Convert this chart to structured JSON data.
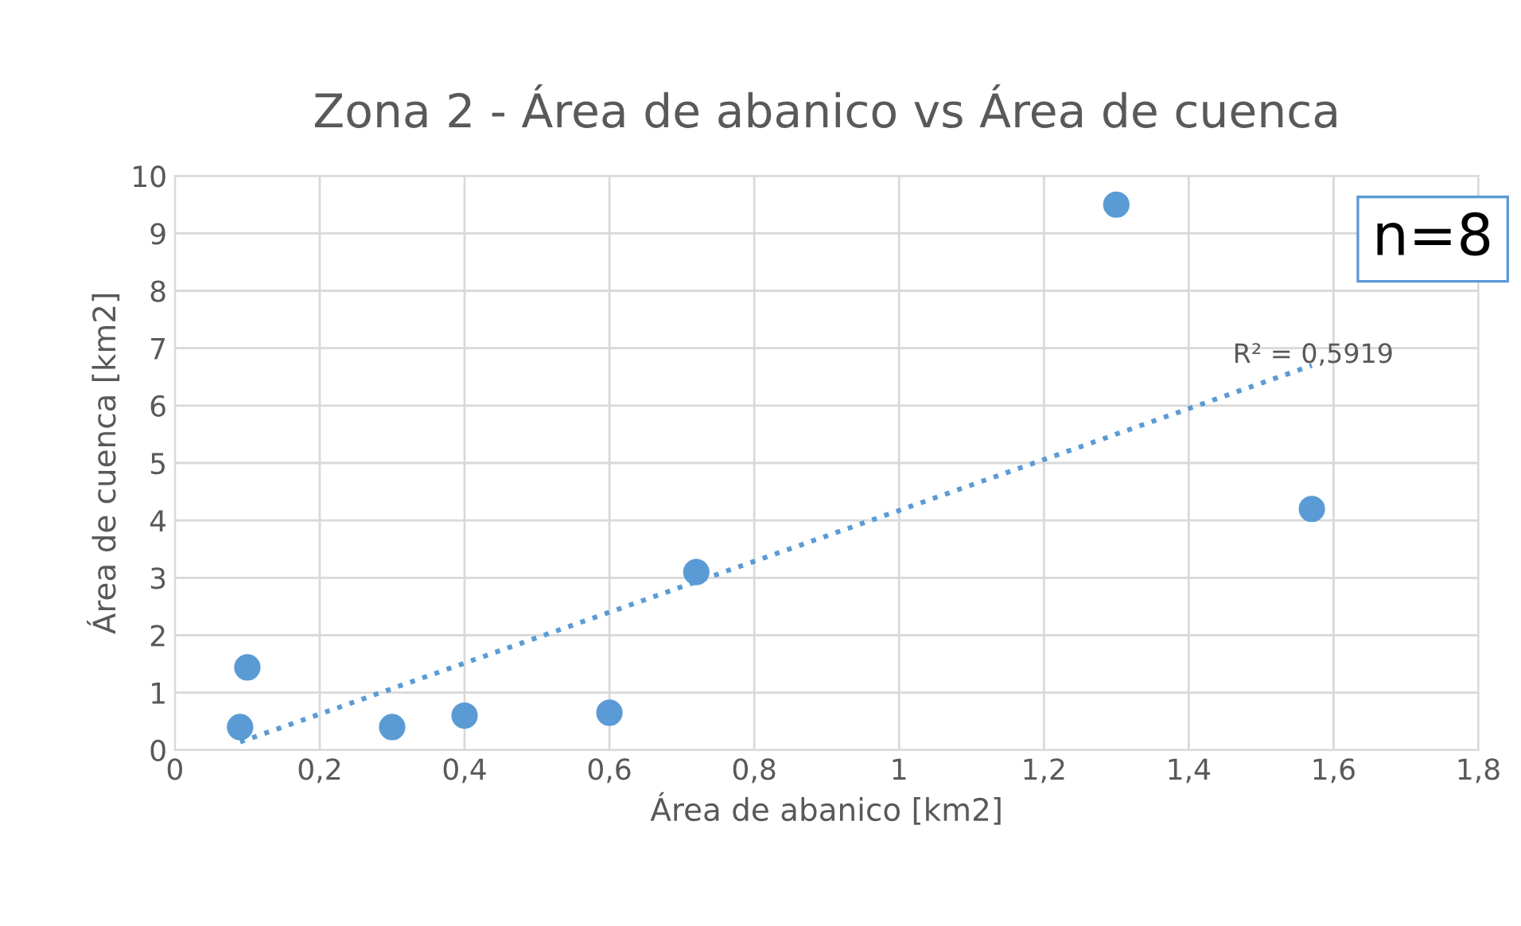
{
  "chart_data": {
    "type": "scatter",
    "title": "Zona 2 - Área de abanico vs Área de cuenca",
    "xlabel": "Área de abanico [km2]",
    "ylabel": "Área de cuenca [km2]",
    "series": [
      {
        "color": "#5b9bd5",
        "marker": "circle",
        "x": [
          0.09,
          0.1,
          0.3,
          0.4,
          0.6,
          0.72,
          1.3,
          1.57
        ],
        "values": [
          0.4,
          1.44,
          0.4,
          0.6,
          0.65,
          3.1,
          9.5,
          4.2
        ]
      },
      {
        "type": "line",
        "color": "#5b9bd5",
        "line_style": "dotted",
        "x": [
          0.09,
          1.57
        ],
        "values": [
          0.14,
          6.7
        ]
      }
    ],
    "annotations": [
      "R² = 0,5919",
      "n=8"
    ],
    "xlim": [
      0,
      1.8
    ],
    "xticks": [
      0,
      {
        "value": 0.2,
        "label": "0,2"
      },
      {
        "value": 0.4,
        "label": "0,4"
      },
      {
        "value": 0.6,
        "label": "0,6"
      },
      {
        "value": 0.8,
        "label": "0,8"
      },
      1,
      {
        "value": 1.2,
        "label": "1,2"
      },
      {
        "value": 1.4,
        "label": "1,4"
      },
      {
        "value": 1.6,
        "label": "1,6"
      },
      {
        "value": 1.8,
        "label": "1,8"
      }
    ],
    "ylim": [
      0,
      10
    ],
    "yticks": [
      0,
      1,
      2,
      3,
      4,
      5,
      6,
      7,
      8,
      9,
      10
    ],
    "grid": true,
    "legend": false
  }
}
